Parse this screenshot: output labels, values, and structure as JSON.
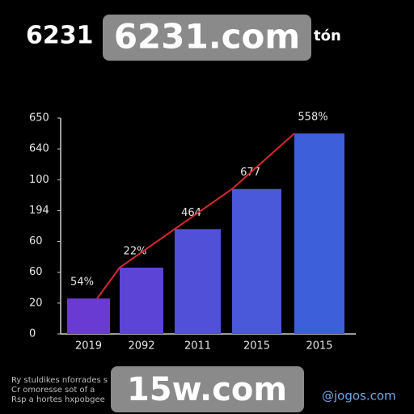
{
  "chart_data": {
    "type": "bar",
    "title": "6231",
    "title_suffix": "tón",
    "categories": [
      "2019",
      "2092",
      "2011",
      "2015",
      "2015"
    ],
    "series": [
      {
        "colors": [
          "#6a3bd3",
          "#5b44d6",
          "#5050d8",
          "#4a58da",
          "#3d60da"
        ],
        "line_color": "#d8282e",
        "values": [
          1.15,
          2.15,
          3.4,
          4.7,
          6.5
        ]
      }
    ],
    "annotations": [
      "54%",
      "22%",
      "464",
      "677",
      "558%"
    ],
    "ylim": [
      0,
      7
    ],
    "yticks": [
      {
        "value": 0,
        "label": "0"
      },
      {
        "value": 1,
        "label": "20"
      },
      {
        "value": 2,
        "label": "60"
      },
      {
        "value": 3,
        "label": "60"
      },
      {
        "value": 4,
        "label": "194"
      },
      {
        "value": 5,
        "label": "100"
      },
      {
        "value": 6,
        "label": "640"
      },
      {
        "value": 7,
        "label": "650"
      }
    ],
    "footnotes": [
      "Ry stuldikes nforrades s",
      "Cr omoresse sot of a",
      "Rsp a hortes hxpobgee"
    ]
  },
  "watermarks": [
    "6231.com",
    "15w.com",
    "@jogos.com"
  ]
}
